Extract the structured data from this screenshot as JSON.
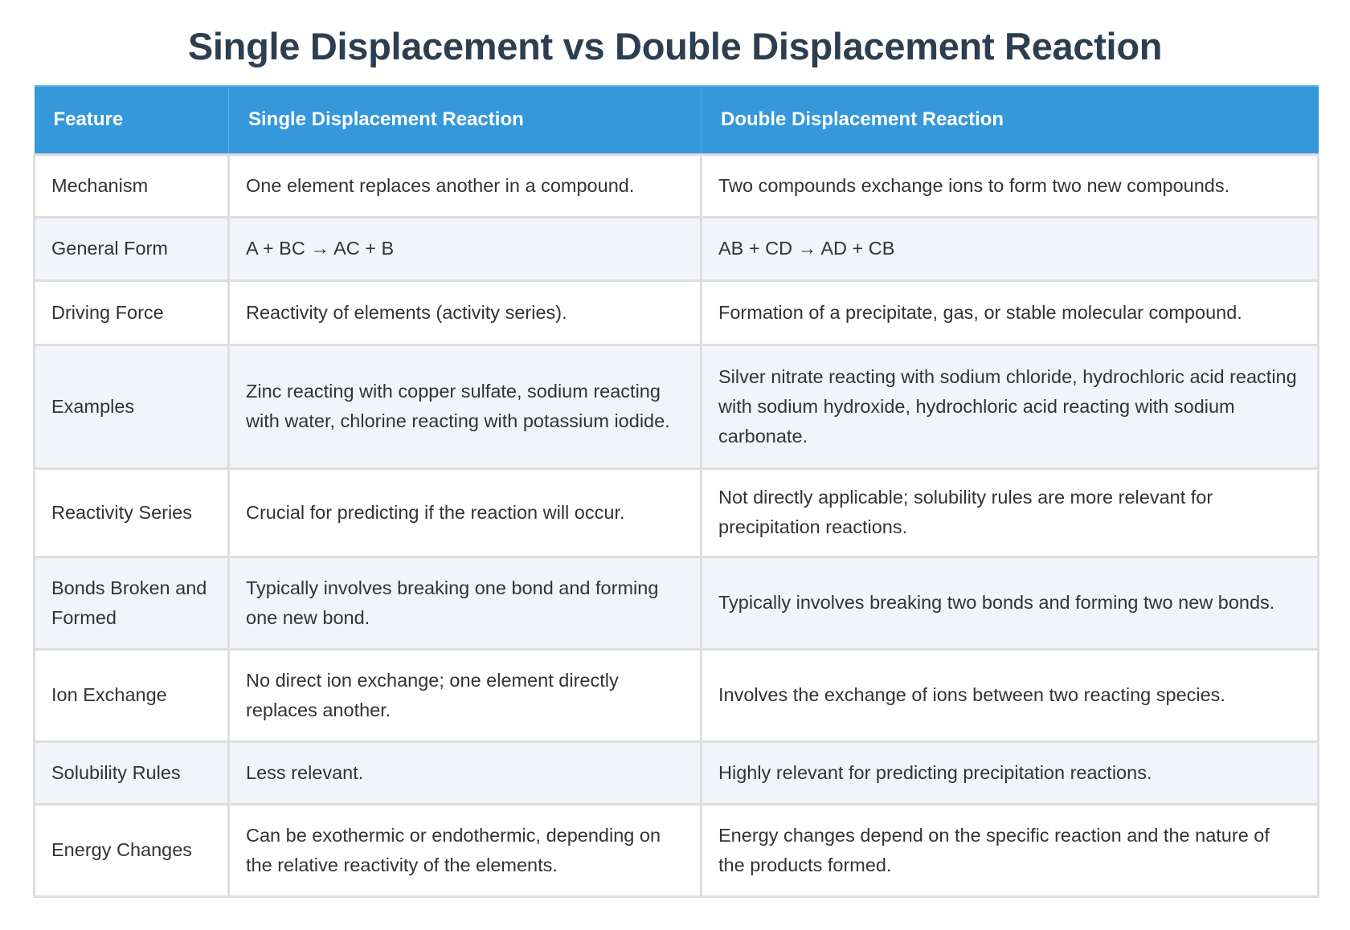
{
  "page": {
    "title": "Single Displacement vs Double Displacement Reaction"
  },
  "table": {
    "headers": {
      "feature": "Feature",
      "single": "Single Displacement Reaction",
      "double": "Double Displacement Reaction"
    },
    "colors": {
      "header_bg": "#3498db",
      "header_text": "#ffffff",
      "title_text": "#2c3e50",
      "row_alt_bg": "#f1f4f9",
      "row_bg": "#ffffff",
      "border": "#dedede"
    },
    "rows": [
      {
        "feature": "Mechanism",
        "single": "One element replaces another in a compound.",
        "double": "Two compounds exchange ions to form two new compounds."
      },
      {
        "feature": "General Form",
        "single": "A + BC → AC + B",
        "double": "AB + CD → AD + CB"
      },
      {
        "feature": "Driving Force",
        "single": "Reactivity of elements (activity series).",
        "double": "Formation of a precipitate, gas, or stable molecular compound."
      },
      {
        "feature": "Examples",
        "single": "Zinc reacting with copper sulfate, sodium reacting with water, chlorine reacting with potassium iodide.",
        "double": "Silver nitrate reacting with sodium chloride, hydrochloric acid reacting with sodium hydroxide, hydrochloric acid reacting with sodium carbonate."
      },
      {
        "feature": "Reactivity Series",
        "single": "Crucial for predicting if the reaction will occur.",
        "double": "Not directly applicable; solubility rules are more relevant for precipitation reactions."
      },
      {
        "feature": "Bonds Broken and Formed",
        "single": "Typically involves breaking one bond and forming one new bond.",
        "double": "Typically involves breaking two bonds and forming two new bonds."
      },
      {
        "feature": "Ion Exchange",
        "single": "No direct ion exchange; one element directly replaces another.",
        "double": "Involves the exchange of ions between two reacting species."
      },
      {
        "feature": "Solubility Rules",
        "single": "Less relevant.",
        "double": "Highly relevant for predicting precipitation reactions."
      },
      {
        "feature": "Energy Changes",
        "single": "Can be exothermic or endothermic, depending on the relative reactivity of the elements.",
        "double": "Energy changes depend on the specific reaction and the nature of the products formed."
      }
    ]
  }
}
